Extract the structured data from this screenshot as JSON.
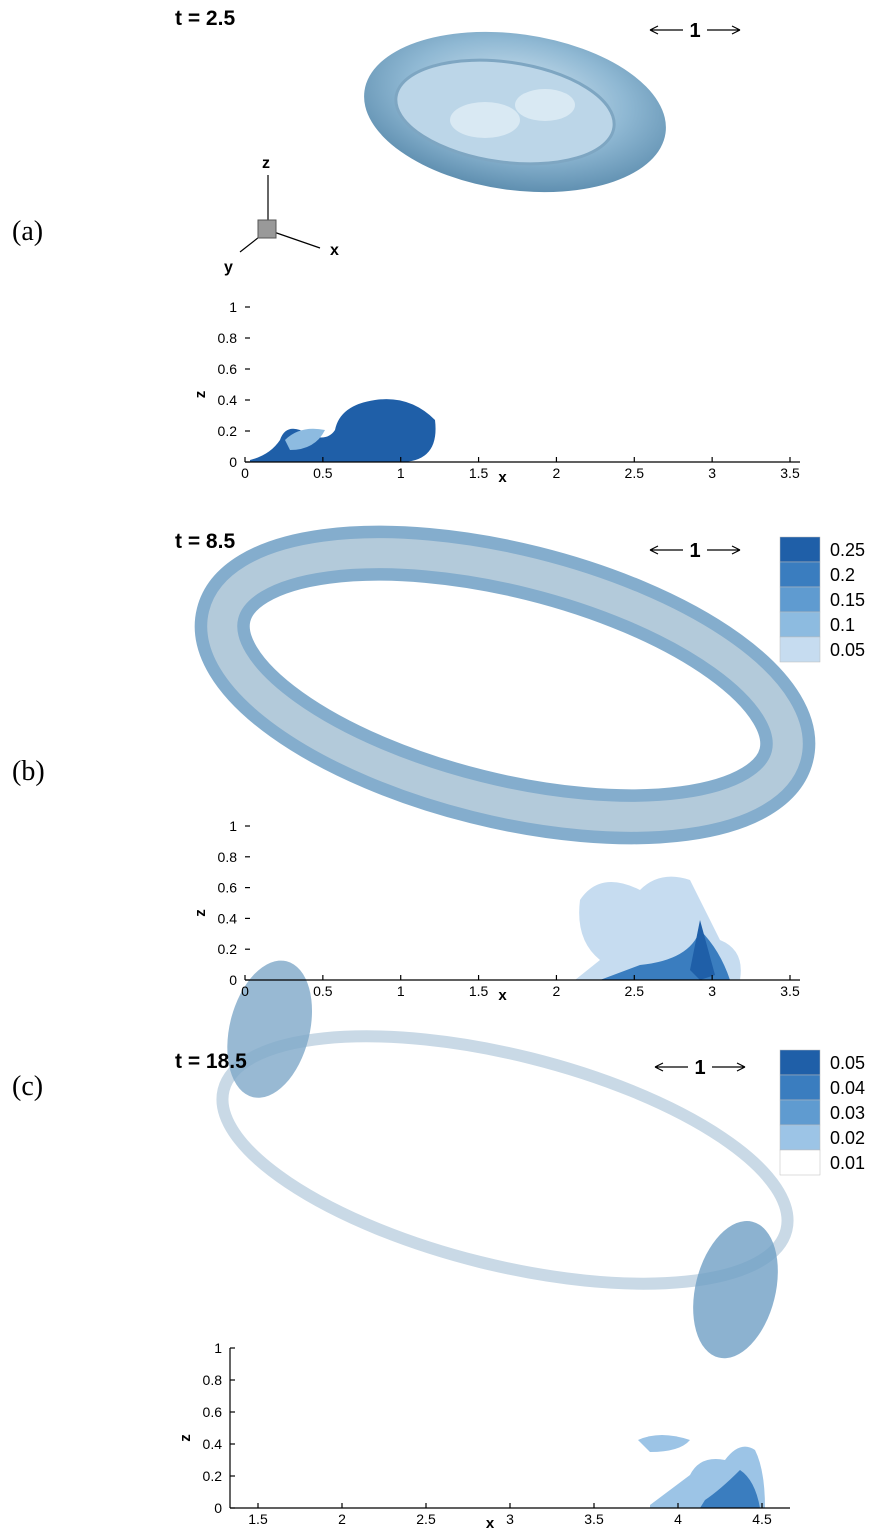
{
  "panels": [
    {
      "label": "(a)",
      "time": "t = 2.5",
      "scale_label": "1",
      "triad_labels": [
        "z",
        "x",
        "y"
      ],
      "plot": {
        "xlabel": "x",
        "ylabel": "z",
        "xticks": [
          0,
          0.5,
          1,
          1.5,
          2,
          2.5,
          3,
          3.5
        ],
        "yticks": [
          0,
          0.2,
          0.4,
          0.6,
          0.8,
          1
        ]
      }
    },
    {
      "label": "(b)",
      "time": "t = 8.5",
      "scale_label": "1",
      "legend": {
        "levels": [
          0.25,
          0.2,
          0.15,
          0.1,
          0.05
        ],
        "colors": [
          "#1f5fa8",
          "#3a7dbf",
          "#5f9bd0",
          "#8dbbe0",
          "#c6dcf0"
        ]
      },
      "plot": {
        "xlabel": "x",
        "ylabel": "z",
        "xticks": [
          0,
          0.5,
          1,
          1.5,
          2,
          2.5,
          3,
          3.5
        ],
        "yticks": [
          0,
          0.2,
          0.4,
          0.6,
          0.8,
          1
        ]
      }
    },
    {
      "label": "(c)",
      "time": "t = 18.5",
      "scale_label": "1",
      "legend": {
        "levels": [
          0.05,
          0.04,
          0.03,
          0.02,
          0.01
        ],
        "colors": [
          "#1f5fa8",
          "#3a7dbf",
          "#5f9bd0",
          "#9cc4e6",
          "#ffffff"
        ]
      },
      "plot": {
        "xlabel": "x",
        "ylabel": "z",
        "xticks": [
          1.5,
          2,
          2.5,
          3,
          3.5,
          4,
          4.5
        ],
        "yticks": [
          0,
          0.2,
          0.4,
          0.6,
          0.8,
          1
        ]
      }
    }
  ]
}
